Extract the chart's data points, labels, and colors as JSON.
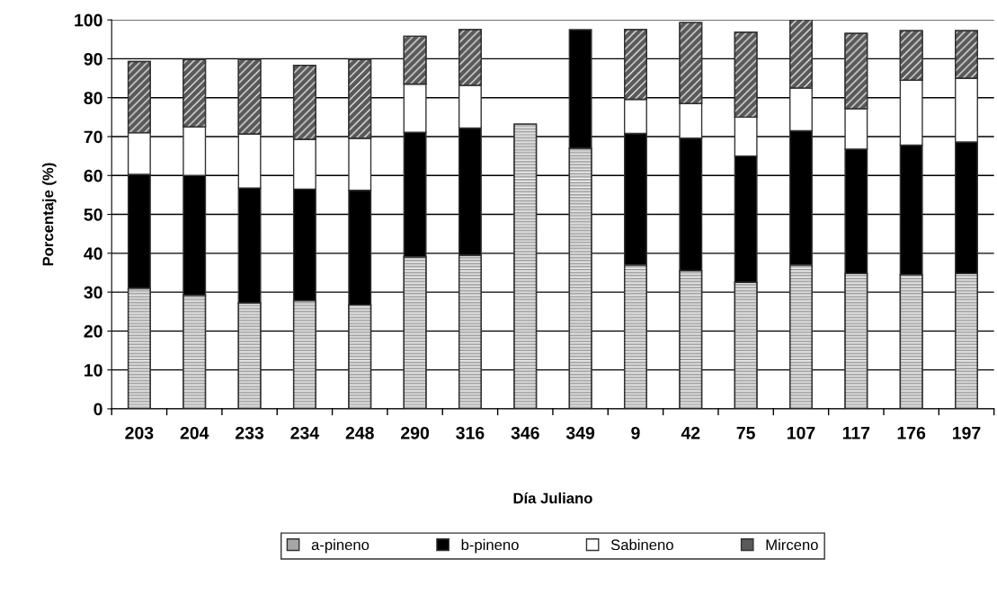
{
  "chart_data": {
    "type": "bar",
    "stacked": true,
    "xlabel": "Día Juliano",
    "ylabel": "Porcentaje (%)",
    "categories": [
      "203",
      "204",
      "233",
      "234",
      "248",
      "290",
      "316",
      "346",
      "349",
      "9",
      "42",
      "75",
      "107",
      "117",
      "176",
      "197"
    ],
    "series": [
      {
        "name": "a-pineno",
        "color": "#a6a6a6",
        "values": [
          31,
          29.2,
          27.2,
          27.8,
          26.7,
          39.1,
          39.5,
          73.2,
          67,
          37,
          35.5,
          32.5,
          37,
          34.8,
          34.5,
          34.8
        ]
      },
      {
        "name": "b-pineno",
        "color": "#000000",
        "values": [
          29.3,
          30.8,
          29.6,
          28.7,
          29.5,
          32,
          32.7,
          null,
          30.5,
          33.8,
          34.1,
          32.5,
          34.5,
          32,
          33.3,
          33.8
        ]
      },
      {
        "name": "Sabineno",
        "color": "#ffffff",
        "values": [
          10.7,
          12.5,
          13.9,
          12.8,
          13.4,
          12.4,
          11,
          null,
          null,
          8.8,
          8.9,
          10,
          11,
          10.4,
          16.7,
          16.4
        ]
      },
      {
        "name": "Mirceno",
        "color": "#595959",
        "values": [
          18.3,
          17.3,
          19.1,
          19,
          20.2,
          12.3,
          14.3,
          null,
          null,
          17.9,
          20.8,
          21.8,
          17.5,
          19.3,
          12.7,
          12.2
        ]
      }
    ],
    "ylim": [
      0,
      100
    ],
    "yticks": [
      0,
      10,
      20,
      30,
      40,
      50,
      60,
      70,
      80,
      90,
      100
    ],
    "grid": "y",
    "legend": "bottom"
  }
}
